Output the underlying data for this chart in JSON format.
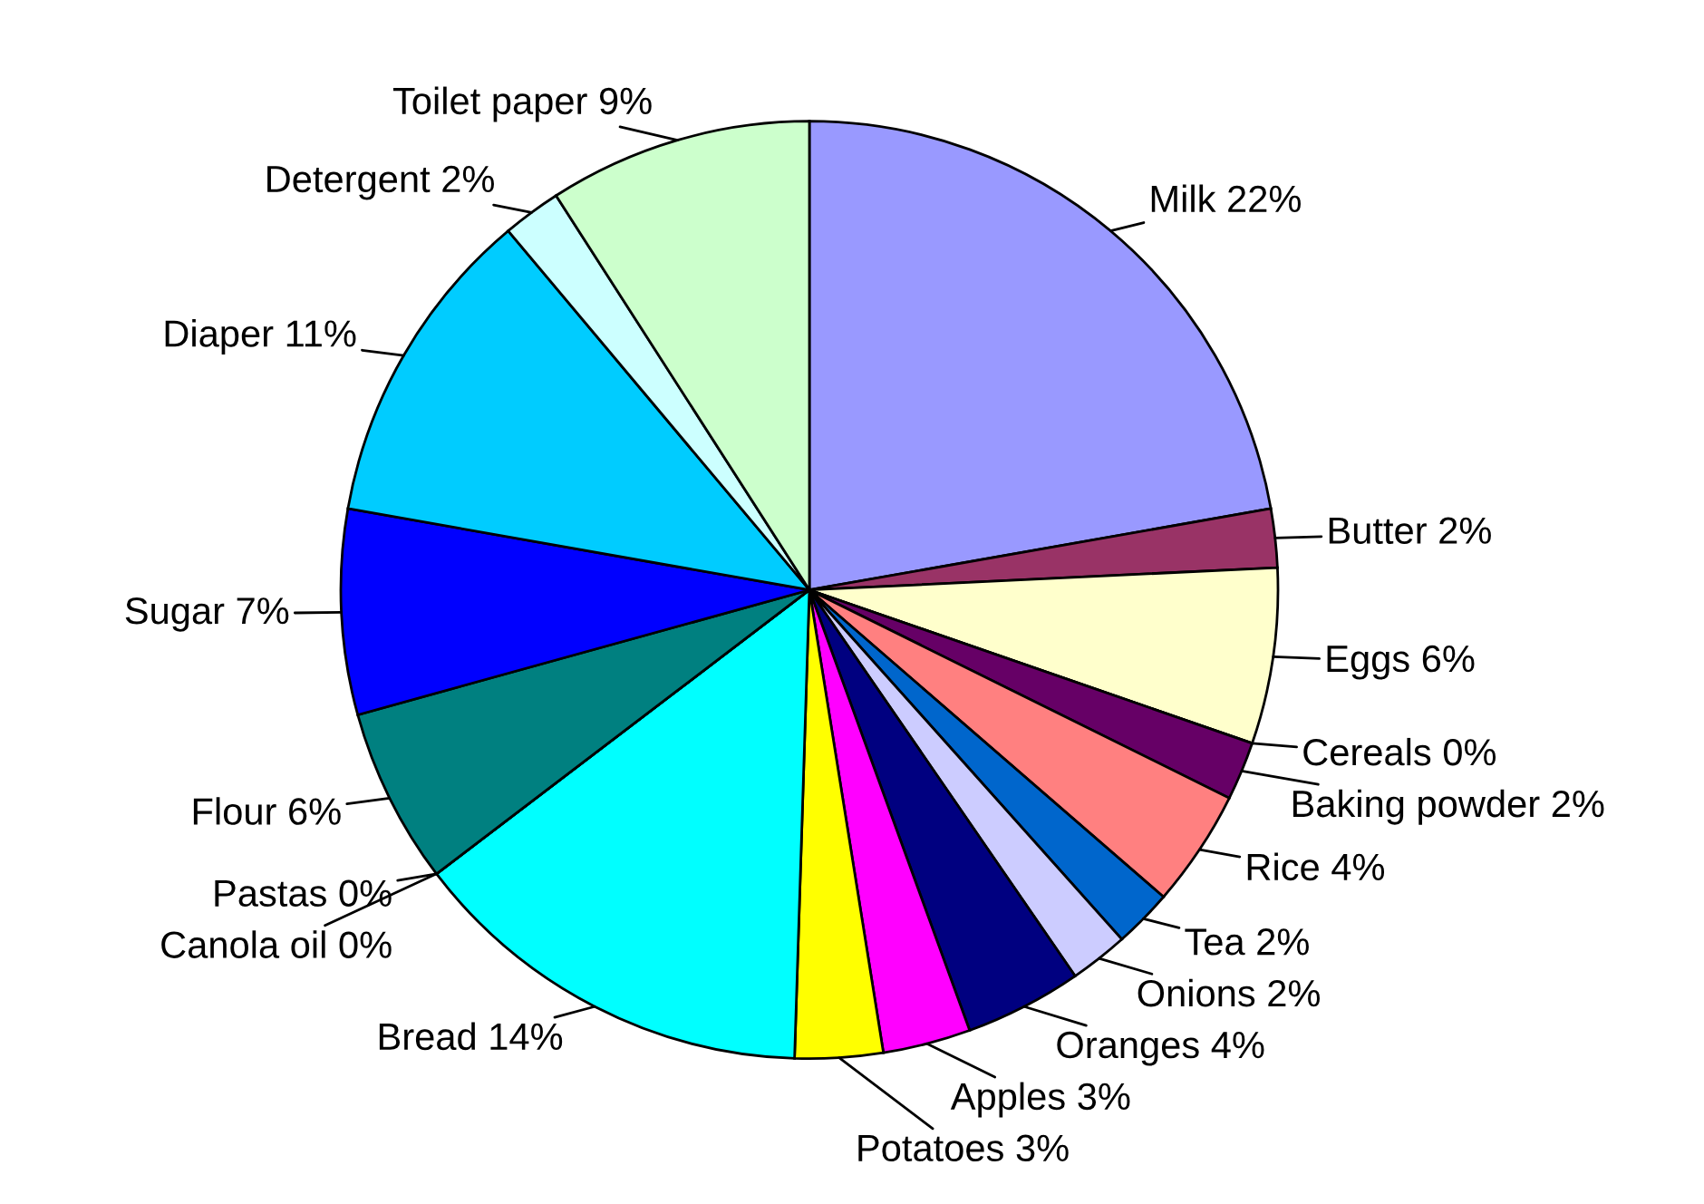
{
  "chart_data": {
    "type": "pie",
    "categories": [
      "Milk",
      "Butter",
      "Eggs",
      "Cereals",
      "Baking powder",
      "Rice",
      "Tea",
      "Onions",
      "Oranges",
      "Apples",
      "Potatoes",
      "Bread",
      "Canola oil",
      "Pastas",
      "Flour",
      "Sugar",
      "Diaper",
      "Detergent",
      "Toilet paper"
    ],
    "values": [
      22,
      2,
      6,
      0,
      2,
      4,
      2,
      2,
      4,
      3,
      3,
      14,
      0,
      0,
      6,
      7,
      11,
      2,
      9
    ],
    "value_labels": [
      "22%",
      "2%",
      "6%",
      "0%",
      "2%",
      "4%",
      "2%",
      "2%",
      "4%",
      "3%",
      "3%",
      "14%",
      "0%",
      "0%",
      "6%",
      "7%",
      "11%",
      "2%",
      "9%"
    ],
    "colors": [
      "#9999ff",
      "#993366",
      "#ffffcc",
      "#ccffff",
      "#660066",
      "#ff8080",
      "#0066cc",
      "#ccccff",
      "#000080",
      "#ff00ff",
      "#ffff00",
      "#00ffff",
      "#800080",
      "#800000",
      "#008080",
      "#0000ff",
      "#00ccff",
      "#ccffff",
      "#ccffcc"
    ]
  }
}
